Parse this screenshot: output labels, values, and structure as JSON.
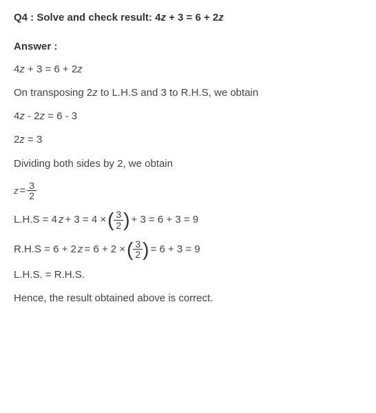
{
  "question": {
    "prefix": "Q4 :",
    "text": "  Solve and check result: 4",
    "var1": "z",
    "mid1": " + 3 = 6 + 2",
    "var2": "z"
  },
  "answer_label": "Answer :",
  "lines": {
    "l1a": "4",
    "l1v1": "z",
    "l1b": " + 3 = 6 + 2",
    "l1v2": "z",
    "l2a": "On transposing 2",
    "l2v1": "z",
    "l2b": " to L.H.S and 3 to R.H.S, we obtain",
    "l3a": "4",
    "l3v1": "z",
    "l3b": " - 2",
    "l3v2": "z",
    "l3c": " = 6 - 3",
    "l4a": "2",
    "l4v1": "z",
    "l4b": " = 3",
    "l5": "Dividing both sides by 2, we obtain",
    "l6v": "z",
    "l6eq": " = ",
    "l6num": "3",
    "l6den": "2",
    "l7a": "L.H.S = 4",
    "l7v1": "z",
    "l7b": " + 3 = 4 ×",
    "l7num": "3",
    "l7den": "2",
    "l7c": " + 3 = 6 + 3 = 9",
    "l8a": "R.H.S = 6 + 2",
    "l8v1": "z",
    "l8b": " = 6 + 2 ×",
    "l8num": "3",
    "l8den": "2",
    "l8c": " = 6 + 3 = 9",
    "l9": "L.H.S. = R.H.S.",
    "l10": "Hence, the result obtained above is correct."
  },
  "style": {
    "text_color": "#444444",
    "heading_color": "#333333",
    "background": "#ffffff",
    "base_fontsize": 15,
    "frac_fontsize": 14
  }
}
